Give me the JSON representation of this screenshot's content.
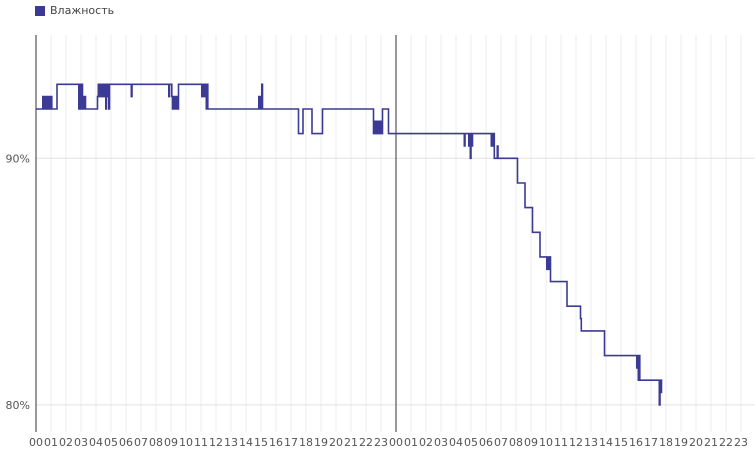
{
  "legend": {
    "label": "Влажность",
    "color": "#3b3a94"
  },
  "chart_data": {
    "type": "line",
    "title": "",
    "xlabel": "",
    "ylabel": "",
    "ylim": [
      78.9,
      95.0
    ],
    "y_ticks": [
      {
        "value": 80,
        "label": "80%"
      },
      {
        "value": 90,
        "label": "90%"
      }
    ],
    "x_ticks": [
      "00",
      "01",
      "02",
      "03",
      "04",
      "05",
      "06",
      "07",
      "08",
      "09",
      "10",
      "11",
      "12",
      "13",
      "14",
      "15",
      "16",
      "17",
      "18",
      "19",
      "20",
      "21",
      "22",
      "23",
      "00",
      "01",
      "02",
      "03",
      "04",
      "05",
      "06",
      "07",
      "08",
      "09",
      "10",
      "11",
      "12",
      "13",
      "14",
      "15",
      "16",
      "17",
      "18",
      "19",
      "20",
      "21",
      "22",
      "23"
    ],
    "day_boundary_hour": 24,
    "grid": true,
    "legend_position": "top-left",
    "series": [
      {
        "name": "Влажность",
        "color": "#3b3a94",
        "points": [
          [
            0.0,
            92
          ],
          [
            0.4,
            92
          ],
          [
            0.45,
            92.5
          ],
          [
            0.5,
            92
          ],
          [
            0.55,
            92.5
          ],
          [
            0.6,
            92
          ],
          [
            0.7,
            92.5
          ],
          [
            0.75,
            92
          ],
          [
            0.8,
            92.5
          ],
          [
            0.85,
            92
          ],
          [
            0.9,
            92.5
          ],
          [
            0.95,
            92
          ],
          [
            1.0,
            92.5
          ],
          [
            1.05,
            92
          ],
          [
            1.3,
            92
          ],
          [
            1.4,
            93
          ],
          [
            2.8,
            93
          ],
          [
            2.85,
            92
          ],
          [
            2.9,
            93
          ],
          [
            2.95,
            92.5
          ],
          [
            3.0,
            92
          ],
          [
            3.05,
            93
          ],
          [
            3.1,
            92.5
          ],
          [
            3.15,
            92
          ],
          [
            3.2,
            92.5
          ],
          [
            3.3,
            92
          ],
          [
            4.0,
            92
          ],
          [
            4.1,
            92.5
          ],
          [
            4.15,
            93
          ],
          [
            4.2,
            92.5
          ],
          [
            4.25,
            93
          ],
          [
            4.3,
            92.5
          ],
          [
            4.35,
            93
          ],
          [
            4.4,
            92.5
          ],
          [
            4.5,
            93
          ],
          [
            4.55,
            92.5
          ],
          [
            4.6,
            93
          ],
          [
            4.65,
            92
          ],
          [
            4.7,
            93
          ],
          [
            4.75,
            92.5
          ],
          [
            4.8,
            93
          ],
          [
            4.85,
            92
          ],
          [
            4.9,
            93
          ],
          [
            6.3,
            93
          ],
          [
            6.35,
            92.5
          ],
          [
            6.4,
            93
          ],
          [
            8.8,
            93
          ],
          [
            8.85,
            92.5
          ],
          [
            8.9,
            93
          ],
          [
            9.0,
            93
          ],
          [
            9.05,
            92.5
          ],
          [
            9.1,
            92
          ],
          [
            9.15,
            92.5
          ],
          [
            9.2,
            92
          ],
          [
            9.25,
            92.5
          ],
          [
            9.3,
            92
          ],
          [
            9.35,
            92.5
          ],
          [
            9.4,
            92
          ],
          [
            9.5,
            93
          ],
          [
            11.0,
            93
          ],
          [
            11.05,
            92.5
          ],
          [
            11.1,
            93
          ],
          [
            11.15,
            92.5
          ],
          [
            11.2,
            93
          ],
          [
            11.25,
            92.5
          ],
          [
            11.3,
            93
          ],
          [
            11.35,
            92
          ],
          [
            11.4,
            93
          ],
          [
            11.45,
            92
          ],
          [
            14.8,
            92
          ],
          [
            14.85,
            92.5
          ],
          [
            14.9,
            92
          ],
          [
            14.95,
            92.5
          ],
          [
            15.0,
            92
          ],
          [
            15.05,
            93
          ],
          [
            15.1,
            92
          ],
          [
            17.2,
            92
          ],
          [
            17.5,
            91
          ],
          [
            17.7,
            91
          ],
          [
            17.8,
            92
          ],
          [
            17.85,
            92
          ],
          [
            18.2,
            92
          ],
          [
            18.4,
            91
          ],
          [
            18.9,
            91
          ],
          [
            19.1,
            92
          ],
          [
            22.3,
            92
          ],
          [
            22.5,
            91
          ],
          [
            22.55,
            91.5
          ],
          [
            22.6,
            91
          ],
          [
            22.65,
            91.5
          ],
          [
            22.7,
            91
          ],
          [
            22.75,
            91.5
          ],
          [
            22.8,
            91
          ],
          [
            22.85,
            91.5
          ],
          [
            22.9,
            91
          ],
          [
            22.95,
            91.5
          ],
          [
            23.0,
            91
          ],
          [
            23.1,
            92
          ],
          [
            23.4,
            92
          ],
          [
            23.5,
            91
          ],
          [
            28.5,
            91
          ],
          [
            28.55,
            90.5
          ],
          [
            28.6,
            91
          ],
          [
            28.8,
            91
          ],
          [
            28.85,
            90.5
          ],
          [
            28.9,
            91
          ],
          [
            28.95,
            90
          ],
          [
            29.0,
            91
          ],
          [
            29.05,
            90.5
          ],
          [
            29.1,
            91
          ],
          [
            30.3,
            91
          ],
          [
            30.35,
            90.5
          ],
          [
            30.4,
            91
          ],
          [
            30.45,
            90.5
          ],
          [
            30.5,
            91
          ],
          [
            30.55,
            90
          ],
          [
            30.7,
            90
          ],
          [
            30.75,
            90.5
          ],
          [
            30.8,
            90
          ],
          [
            32.0,
            90
          ],
          [
            32.1,
            89
          ],
          [
            32.5,
            89
          ],
          [
            32.6,
            88
          ],
          [
            33.0,
            88
          ],
          [
            33.1,
            87
          ],
          [
            33.5,
            87
          ],
          [
            33.6,
            86
          ],
          [
            34.0,
            86
          ],
          [
            34.05,
            85.5
          ],
          [
            34.1,
            86
          ],
          [
            34.15,
            85.5
          ],
          [
            34.2,
            86
          ],
          [
            34.25,
            86
          ],
          [
            34.3,
            85
          ],
          [
            35.3,
            85
          ],
          [
            35.4,
            84
          ],
          [
            36.2,
            84
          ],
          [
            36.3,
            83.5
          ],
          [
            36.35,
            83
          ],
          [
            37.8,
            83
          ],
          [
            37.9,
            82
          ],
          [
            40.0,
            82
          ],
          [
            40.05,
            81.5
          ],
          [
            40.1,
            82
          ],
          [
            40.15,
            81
          ],
          [
            40.2,
            82
          ],
          [
            40.25,
            81
          ],
          [
            40.3,
            81
          ],
          [
            41.5,
            81
          ],
          [
            41.55,
            80
          ],
          [
            41.6,
            81
          ],
          [
            41.65,
            80.5
          ],
          [
            41.7,
            81
          ],
          [
            41.75,
            81
          ]
        ]
      }
    ]
  }
}
